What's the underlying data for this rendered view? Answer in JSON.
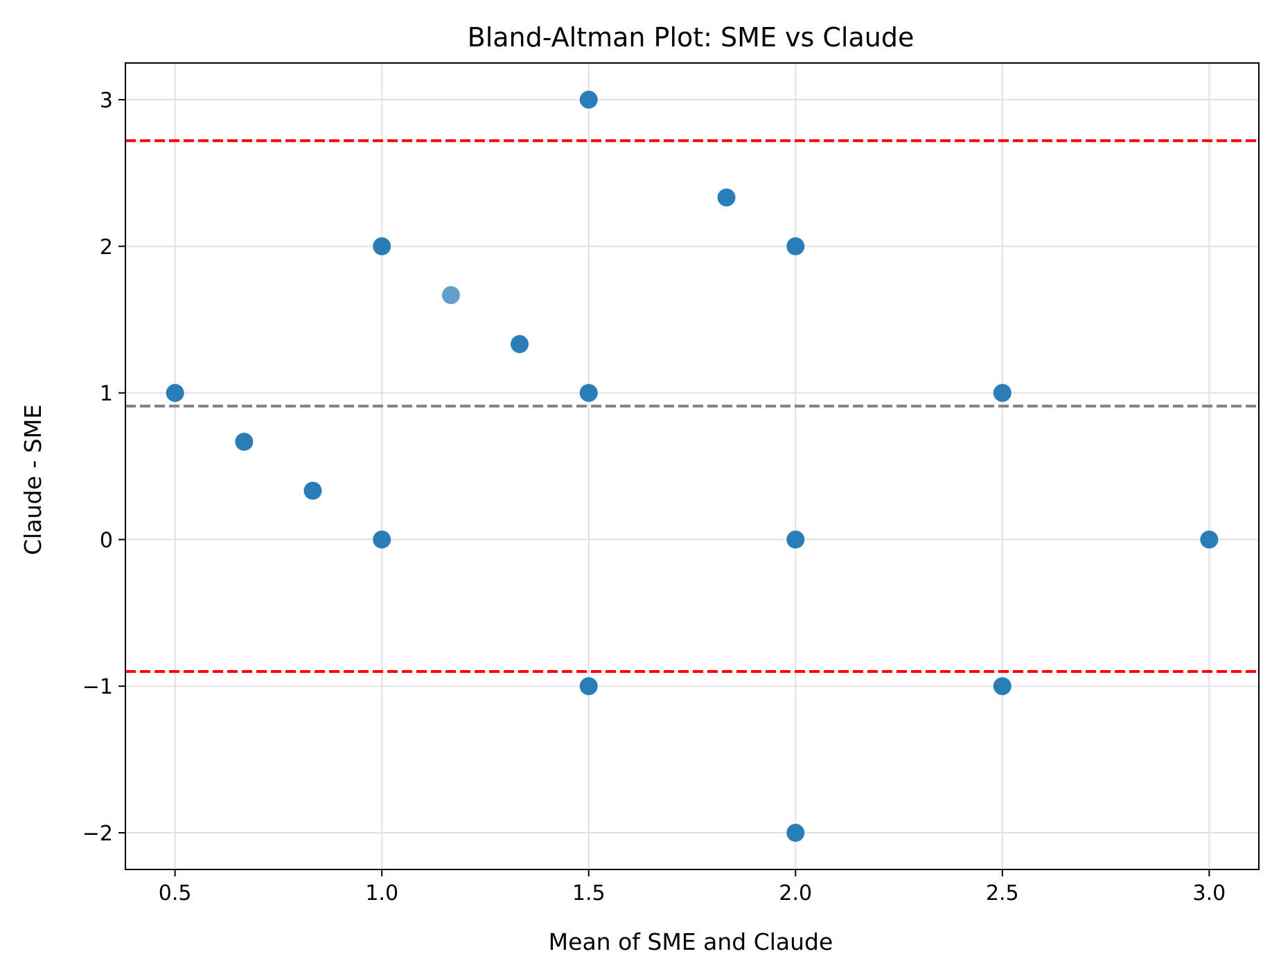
{
  "chart_data": {
    "type": "scatter",
    "title": "Bland-Altman Plot: SME vs Claude",
    "xlabel": "Mean of SME and Claude",
    "ylabel": "Claude - SME",
    "xlim": [
      0.38,
      3.12
    ],
    "ylim": [
      -2.25,
      3.25
    ],
    "xticks": [
      0.5,
      1.0,
      1.5,
      2.0,
      2.5,
      3.0
    ],
    "xtick_labels": [
      "0.5",
      "1.0",
      "1.5",
      "2.0",
      "2.5",
      "3.0"
    ],
    "yticks": [
      -2,
      -1,
      0,
      1,
      2,
      3
    ],
    "ytick_labels": [
      "−2",
      "−1",
      "0",
      "1",
      "2",
      "3"
    ],
    "grid": true,
    "points": [
      {
        "x": 0.5,
        "y": 1.0
      },
      {
        "x": 0.667,
        "y": 0.667
      },
      {
        "x": 0.833,
        "y": 0.333
      },
      {
        "x": 1.0,
        "y": 2.0
      },
      {
        "x": 1.0,
        "y": 0.0
      },
      {
        "x": 1.167,
        "y": 1.667,
        "alpha": 0.7
      },
      {
        "x": 1.333,
        "y": 1.333
      },
      {
        "x": 1.5,
        "y": 3.0
      },
      {
        "x": 1.5,
        "y": 1.0
      },
      {
        "x": 1.5,
        "y": -1.0
      },
      {
        "x": 1.833,
        "y": 2.333
      },
      {
        "x": 2.0,
        "y": 2.0
      },
      {
        "x": 2.0,
        "y": 0.0
      },
      {
        "x": 2.0,
        "y": -2.0
      },
      {
        "x": 2.5,
        "y": 1.0
      },
      {
        "x": 2.5,
        "y": -1.0
      },
      {
        "x": 3.0,
        "y": 0.0
      }
    ],
    "mean_difference": 0.91,
    "limits_of_agreement": [
      -0.9,
      2.72
    ],
    "colors": {
      "points": "#1f77b4",
      "mean_line": "#808080",
      "limit_lines": "#ff0000",
      "grid": "#e0e0e0"
    }
  }
}
